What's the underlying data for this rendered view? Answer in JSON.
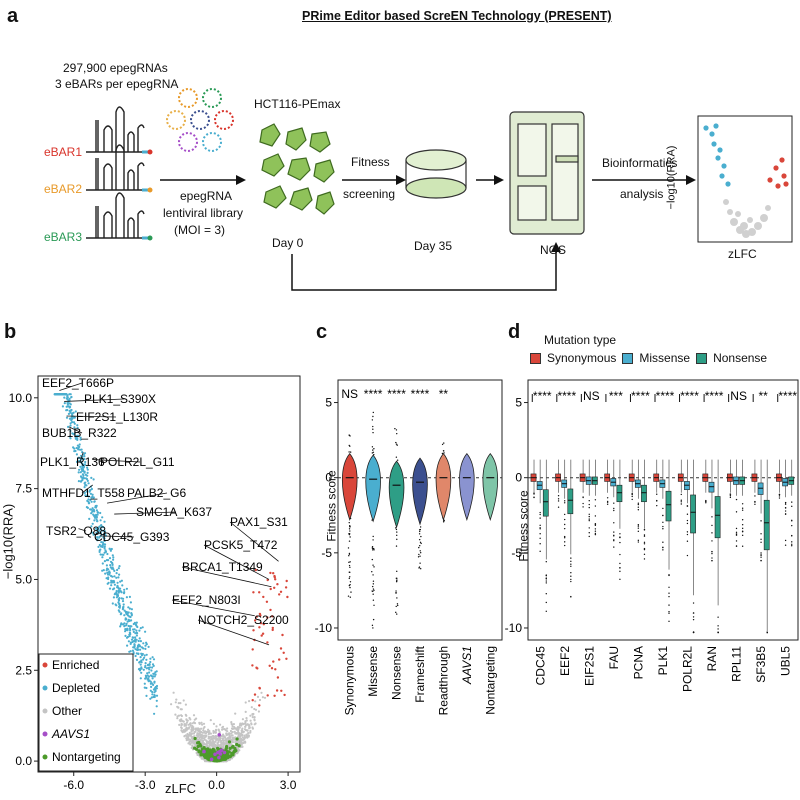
{
  "panel_a": {
    "letter": "a",
    "title": "PRime Editor based ScreEN Technology (PRESENT)",
    "library_count": "297,900 epegRNAs",
    "ebars_per": "3 eBARs per epegRNA",
    "ebar_labels": [
      "eBAR1",
      "eBAR2",
      "eBAR3"
    ],
    "ebar_colors": [
      "#d9342b",
      "#e89a2a",
      "#2a9a56"
    ],
    "library_label_1": "epegRNA",
    "library_label_2": "lentiviral library",
    "library_label_3": "(MOI = 3)",
    "cell_line": "HCT116-PEmax",
    "day0": "Day 0",
    "screen_1": "Fitness",
    "screen_2": "screening",
    "day35": "Day 35",
    "ngs": "NGS",
    "bioinf_1": "Bioinformatics",
    "bioinf_2": "analysis",
    "mini_ylabel": "−log10(RRA)",
    "mini_xlabel": "zLFC"
  },
  "panel_b": {
    "letter": "b",
    "ylabel": "−log10(RRA)",
    "xlabel": "zLFC",
    "chart_data": {
      "type": "scatter",
      "title": "",
      "xlabel": "zLFC",
      "ylabel": "−log10(RRA)",
      "xlim": [
        -7.5,
        3.5
      ],
      "ylim": [
        -0.3,
        10.6
      ],
      "xticks": [
        -6.0,
        -3.0,
        0.0,
        3.0
      ],
      "xtick_labels": [
        "-6.0",
        "-3.0",
        "0.0",
        "3.0"
      ],
      "yticks": [
        0.0,
        2.5,
        5.0,
        7.5,
        10.0
      ],
      "ytick_labels": [
        "0.0",
        "2.5",
        "5.0",
        "7.5",
        "10.0"
      ],
      "annotations": [
        {
          "label": "EEF2_T666P",
          "x": -6.6,
          "y": 10.2
        },
        {
          "label": "PLK1_S390X",
          "x": -6.4,
          "y": 9.9
        },
        {
          "label": "EIF2S1_L130R",
          "x": -6.3,
          "y": 9.5
        },
        {
          "label": "BUB1B_R322",
          "x": -6.2,
          "y": 9.2
        },
        {
          "label": "PLK1_R136",
          "x": -5.6,
          "y": 8.5
        },
        {
          "label": "POLR2L_G11",
          "x": -5.2,
          "y": 8.3
        },
        {
          "label": "MTHFD1_T558",
          "x": -5.2,
          "y": 7.6
        },
        {
          "label": "PALB2_G6",
          "x": -4.6,
          "y": 7.1
        },
        {
          "label": "SMC1A_K637",
          "x": -4.3,
          "y": 6.8
        },
        {
          "label": "TSR2_Q88",
          "x": -5.8,
          "y": 6.4
        },
        {
          "label": "CDC45_G393",
          "x": -4.9,
          "y": 6.2
        },
        {
          "label": "PAX1_S31",
          "x": 2.6,
          "y": 5.5
        },
        {
          "label": "PCSK5_T472",
          "x": 2.2,
          "y": 5.0
        },
        {
          "label": "BRCA1_T1349",
          "x": 2.3,
          "y": 4.8
        },
        {
          "label": "EEF2_N803I",
          "x": 1.6,
          "y": 4.0
        },
        {
          "label": "NOTCH2_S2200",
          "x": 2.2,
          "y": 3.2
        }
      ],
      "legend": [
        {
          "label": "Enriched",
          "color": "#d9463a"
        },
        {
          "label": "Depleted",
          "color": "#4aaecf"
        },
        {
          "label": "Other",
          "color": "#c4c4c4"
        },
        {
          "label": "AAVS1",
          "color": "#a64fc8"
        },
        {
          "label": "Nontargeting",
          "color": "#4c9a2a"
        }
      ],
      "legend_position": "bottom-left"
    }
  },
  "panel_c": {
    "letter": "c",
    "ylabel": "Fitness score",
    "chart_data": {
      "type": "violin",
      "categories": [
        "Synonymous",
        "Missense",
        "Nonsense",
        "Frameshift",
        "Readthrough",
        "AAVS1",
        "Nontargeting"
      ],
      "significance": [
        "NS",
        "****",
        "****",
        "****",
        "**",
        "",
        ""
      ],
      "colors": [
        "#d9463a",
        "#4aaecf",
        "#2e9e86",
        "#3b4f8f",
        "#e0876a",
        "#8a93d0",
        "#7fc5a8"
      ],
      "medians": [
        0.0,
        -0.1,
        -0.5,
        -0.3,
        0.0,
        0.0,
        0.0
      ],
      "ylim": [
        -10.8,
        6.5
      ],
      "yticks": [
        -10,
        -5,
        0,
        5
      ],
      "ytick_labels": [
        "-10",
        "-5",
        "0",
        "5"
      ]
    }
  },
  "panel_d": {
    "letter": "d",
    "legend_title": "Mutation type",
    "legend_items": [
      {
        "label": "Synonymous",
        "color": "#d9463a"
      },
      {
        "label": "Missense",
        "color": "#4aaecf"
      },
      {
        "label": "Nonsense",
        "color": "#2e9e86"
      }
    ],
    "ylabel": "Fitness score",
    "chart_data": {
      "type": "boxplot",
      "categories": [
        "CDC45",
        "EEF2",
        "EIF2S1",
        "FAU",
        "PCNA",
        "PLK1",
        "POLR2L",
        "RAN",
        "RPL11",
        "SF3B5",
        "UBL5"
      ],
      "significance": [
        "****",
        "****",
        "NS",
        "***",
        "****",
        "****",
        "****",
        "****",
        "NS",
        "**",
        "****"
      ],
      "series": [
        {
          "name": "Synonymous",
          "medians": [
            0,
            0,
            0,
            0,
            0,
            0,
            0,
            0,
            0,
            0,
            0
          ]
        },
        {
          "name": "Missense",
          "medians": [
            -0.5,
            -0.4,
            -0.2,
            -0.3,
            -0.4,
            -0.4,
            -0.5,
            -0.6,
            -0.2,
            -0.7,
            -0.3
          ]
        },
        {
          "name": "Nonsense",
          "medians": [
            -1.6,
            -1.5,
            -0.2,
            -1.0,
            -1.0,
            -1.8,
            -2.3,
            -2.5,
            -0.2,
            -3.0,
            -0.2
          ]
        }
      ],
      "ylim": [
        -10.8,
        6.5
      ],
      "yticks": [
        -10,
        -5,
        0,
        5
      ],
      "ytick_labels": [
        "-10",
        "-5",
        "0",
        "5"
      ]
    }
  }
}
